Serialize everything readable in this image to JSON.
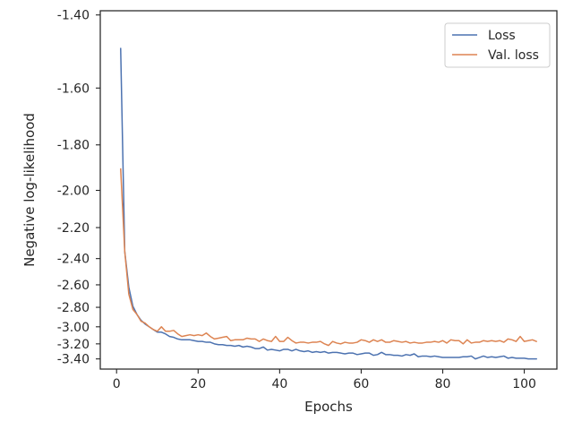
{
  "chart_data": {
    "type": "line",
    "xlabel": "Epochs",
    "ylabel": "Negative log-likelihood",
    "xlim": [
      -4,
      108
    ],
    "ylim": [
      -3.55,
      -1.39
    ],
    "y_scale": "reciprocal",
    "x_ticks": [
      0,
      20,
      40,
      60,
      80,
      100
    ],
    "y_ticks": [
      -1.4,
      -1.6,
      -1.8,
      -2.0,
      -2.2,
      -2.4,
      -2.6,
      -2.8,
      -3.0,
      -3.2,
      -3.4
    ],
    "y_tick_labels": [
      "-1.40",
      "-1.60",
      "-1.80",
      "-2.00",
      "-2.20",
      "-2.40",
      "-2.60",
      "-2.80",
      "-3.00",
      "-3.20",
      "-3.40"
    ],
    "grid": false,
    "legend_position": "top-right",
    "series": [
      {
        "name": "Loss",
        "color": "#4c72b0",
        "x": [
          1,
          2,
          3,
          4,
          5,
          6,
          7,
          8,
          9,
          10,
          11,
          12,
          13,
          14,
          15,
          16,
          17,
          18,
          19,
          20,
          21,
          22,
          23,
          24,
          25,
          26,
          27,
          28,
          29,
          30,
          31,
          32,
          33,
          34,
          35,
          36,
          37,
          38,
          39,
          40,
          41,
          42,
          43,
          44,
          45,
          46,
          47,
          48,
          49,
          50,
          51,
          52,
          53,
          54,
          55,
          56,
          57,
          58,
          59,
          60,
          61,
          62,
          63,
          64,
          65,
          66,
          67,
          68,
          69,
          70,
          71,
          72,
          73,
          74,
          75,
          76,
          77,
          78,
          79,
          80,
          81,
          82,
          83,
          84,
          85,
          86,
          87,
          88,
          89,
          90,
          91,
          92,
          93,
          94,
          95,
          96,
          97,
          98,
          99,
          100,
          101,
          102,
          103
        ],
        "y": [
          -1.485,
          -2.35,
          -2.62,
          -2.79,
          -2.87,
          -2.93,
          -2.97,
          -3.0,
          -3.03,
          -3.06,
          -3.06,
          -3.08,
          -3.11,
          -3.12,
          -3.14,
          -3.15,
          -3.15,
          -3.15,
          -3.16,
          -3.17,
          -3.17,
          -3.18,
          -3.18,
          -3.2,
          -3.21,
          -3.21,
          -3.22,
          -3.22,
          -3.23,
          -3.22,
          -3.24,
          -3.23,
          -3.24,
          -3.26,
          -3.26,
          -3.24,
          -3.28,
          -3.27,
          -3.28,
          -3.29,
          -3.27,
          -3.27,
          -3.29,
          -3.27,
          -3.29,
          -3.3,
          -3.29,
          -3.31,
          -3.3,
          -3.31,
          -3.3,
          -3.32,
          -3.31,
          -3.31,
          -3.32,
          -3.33,
          -3.32,
          -3.32,
          -3.34,
          -3.33,
          -3.32,
          -3.32,
          -3.35,
          -3.34,
          -3.31,
          -3.34,
          -3.34,
          -3.35,
          -3.35,
          -3.36,
          -3.34,
          -3.35,
          -3.33,
          -3.37,
          -3.36,
          -3.36,
          -3.37,
          -3.36,
          -3.37,
          -3.38,
          -3.38,
          -3.38,
          -3.38,
          -3.38,
          -3.37,
          -3.37,
          -3.36,
          -3.4,
          -3.38,
          -3.36,
          -3.38,
          -3.37,
          -3.38,
          -3.37,
          -3.36,
          -3.39,
          -3.38,
          -3.39,
          -3.39,
          -3.39,
          -3.4,
          -3.4,
          -3.4
        ]
      },
      {
        "name": "Val. loss",
        "color": "#dd8452",
        "x": [
          1,
          2,
          3,
          4,
          5,
          6,
          7,
          8,
          9,
          10,
          11,
          12,
          13,
          14,
          15,
          16,
          17,
          18,
          19,
          20,
          21,
          22,
          23,
          24,
          25,
          26,
          27,
          28,
          29,
          30,
          31,
          32,
          33,
          34,
          35,
          36,
          37,
          38,
          39,
          40,
          41,
          42,
          43,
          44,
          45,
          46,
          47,
          48,
          49,
          50,
          51,
          52,
          53,
          54,
          55,
          56,
          57,
          58,
          59,
          60,
          61,
          62,
          63,
          64,
          65,
          66,
          67,
          68,
          69,
          70,
          71,
          72,
          73,
          74,
          75,
          76,
          77,
          78,
          79,
          80,
          81,
          82,
          83,
          84,
          85,
          86,
          87,
          88,
          89,
          90,
          91,
          92,
          93,
          94,
          95,
          96,
          97,
          98,
          99,
          100,
          101,
          102,
          103
        ],
        "y": [
          -1.9,
          -2.35,
          -2.68,
          -2.82,
          -2.87,
          -2.94,
          -2.96,
          -3.0,
          -3.03,
          -3.05,
          -3.0,
          -3.05,
          -3.05,
          -3.04,
          -3.08,
          -3.11,
          -3.1,
          -3.09,
          -3.1,
          -3.09,
          -3.1,
          -3.07,
          -3.11,
          -3.14,
          -3.13,
          -3.12,
          -3.11,
          -3.16,
          -3.15,
          -3.15,
          -3.15,
          -3.13,
          -3.14,
          -3.14,
          -3.17,
          -3.14,
          -3.16,
          -3.17,
          -3.11,
          -3.17,
          -3.17,
          -3.12,
          -3.16,
          -3.19,
          -3.18,
          -3.18,
          -3.19,
          -3.18,
          -3.18,
          -3.17,
          -3.2,
          -3.22,
          -3.17,
          -3.19,
          -3.2,
          -3.18,
          -3.19,
          -3.19,
          -3.18,
          -3.15,
          -3.16,
          -3.18,
          -3.15,
          -3.17,
          -3.15,
          -3.18,
          -3.18,
          -3.16,
          -3.17,
          -3.18,
          -3.17,
          -3.19,
          -3.18,
          -3.19,
          -3.19,
          -3.18,
          -3.18,
          -3.17,
          -3.18,
          -3.16,
          -3.19,
          -3.15,
          -3.16,
          -3.16,
          -3.2,
          -3.15,
          -3.19,
          -3.18,
          -3.18,
          -3.16,
          -3.17,
          -3.16,
          -3.17,
          -3.16,
          -3.18,
          -3.14,
          -3.15,
          -3.17,
          -3.11,
          -3.17,
          -3.16,
          -3.15,
          -3.17
        ]
      }
    ]
  }
}
